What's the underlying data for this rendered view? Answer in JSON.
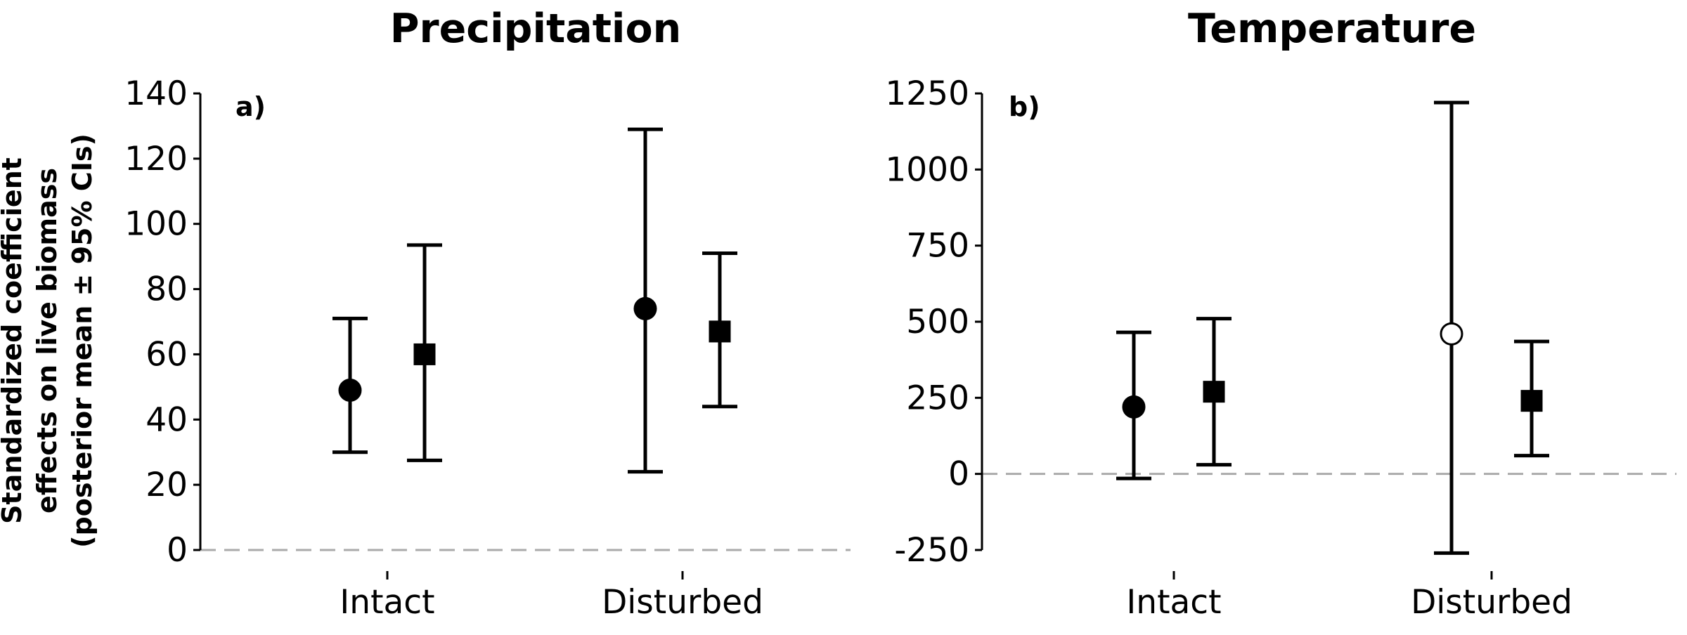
{
  "y_axis_label_lines": [
    "Standardized coefficient",
    "effects on live biomass",
    "(posterior mean ± 95% CIs)"
  ],
  "chart_data": [
    {
      "type": "scatter",
      "title": "Precipitation",
      "panel_label": "a)",
      "categories": [
        "Intact",
        "Disturbed"
      ],
      "ylim": [
        0,
        140
      ],
      "yticks": [
        0,
        20,
        40,
        60,
        80,
        100,
        120,
        140
      ],
      "reference_line": 0,
      "grid": false,
      "points": [
        {
          "category": "Intact",
          "marker": "circle",
          "filled": true,
          "mean": 49,
          "lower": 30,
          "upper": 71
        },
        {
          "category": "Intact",
          "marker": "square",
          "filled": true,
          "mean": 60,
          "lower": 27.5,
          "upper": 93.5
        },
        {
          "category": "Disturbed",
          "marker": "circle",
          "filled": true,
          "mean": 74,
          "lower": 24,
          "upper": 129
        },
        {
          "category": "Disturbed",
          "marker": "square",
          "filled": true,
          "mean": 67,
          "lower": 44,
          "upper": 91
        }
      ]
    },
    {
      "type": "scatter",
      "title": "Temperature",
      "panel_label": "b)",
      "categories": [
        "Intact",
        "Disturbed"
      ],
      "ylim": [
        -250,
        1250
      ],
      "yticks": [
        -250,
        0,
        250,
        500,
        750,
        1000,
        1250
      ],
      "reference_line": 0,
      "grid": false,
      "points": [
        {
          "category": "Intact",
          "marker": "circle",
          "filled": true,
          "mean": 220,
          "lower": -15,
          "upper": 465
        },
        {
          "category": "Intact",
          "marker": "square",
          "filled": true,
          "mean": 270,
          "lower": 30,
          "upper": 510
        },
        {
          "category": "Disturbed",
          "marker": "circle",
          "filled": false,
          "mean": 460,
          "lower": -260,
          "upper": 1220
        },
        {
          "category": "Disturbed",
          "marker": "square",
          "filled": true,
          "mean": 240,
          "lower": 60,
          "upper": 435
        }
      ]
    }
  ],
  "colors": {
    "marker": "#000000",
    "reference_line": "#aaaaaa",
    "open_marker_fill": "#ffffff"
  }
}
